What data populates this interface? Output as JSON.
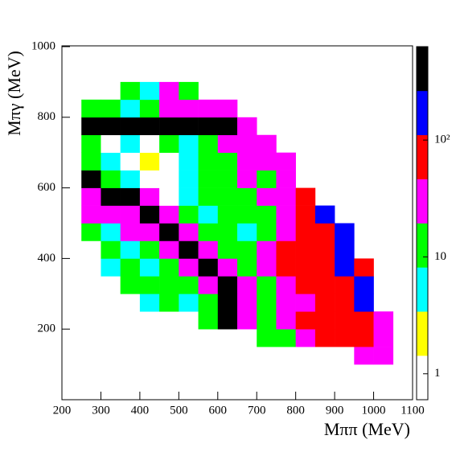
{
  "chart_data": {
    "type": "heatmap",
    "x_label": "Mππ (MeV)",
    "y_label": "Mπγ (MeV)",
    "xlim": [
      200,
      1100
    ],
    "xticks": [
      200,
      300,
      400,
      500,
      600,
      700,
      800,
      900,
      1000,
      1100
    ],
    "ylim": [
      0,
      1000
    ],
    "yticks": [
      200,
      400,
      600,
      800,
      1000
    ],
    "xbins": [
      200,
      250,
      300,
      350,
      400,
      450,
      500,
      550,
      600,
      650,
      700,
      750,
      800,
      850,
      900,
      950,
      1000,
      1050,
      1100
    ],
    "ybins": [
      0,
      50,
      100,
      150,
      200,
      250,
      300,
      350,
      400,
      450,
      500,
      550,
      600,
      650,
      700,
      750,
      800,
      850,
      900,
      950,
      1000
    ],
    "z": [
      [
        null,
        null,
        null,
        null,
        null,
        null,
        null,
        null,
        null,
        null,
        null,
        null,
        null,
        null,
        null,
        null,
        null,
        null
      ],
      [
        null,
        null,
        null,
        null,
        null,
        null,
        null,
        null,
        null,
        null,
        null,
        null,
        null,
        null,
        null,
        null,
        null,
        null
      ],
      [
        null,
        null,
        null,
        null,
        null,
        null,
        null,
        null,
        null,
        null,
        null,
        null,
        null,
        null,
        null,
        30,
        30,
        null
      ],
      [
        null,
        null,
        null,
        null,
        null,
        null,
        null,
        null,
        null,
        null,
        12,
        12,
        30,
        70,
        70,
        70,
        30,
        null
      ],
      [
        null,
        null,
        null,
        null,
        null,
        null,
        null,
        12,
        400,
        30,
        12,
        30,
        70,
        70,
        70,
        70,
        30,
        null
      ],
      [
        null,
        null,
        null,
        null,
        5,
        12,
        5,
        12,
        400,
        30,
        12,
        30,
        30,
        70,
        70,
        180,
        null,
        null
      ],
      [
        null,
        null,
        null,
        12,
        12,
        12,
        12,
        30,
        400,
        30,
        12,
        30,
        70,
        70,
        70,
        180,
        null,
        null
      ],
      [
        null,
        null,
        5,
        12,
        5,
        12,
        30,
        400,
        30,
        12,
        30,
        70,
        70,
        70,
        180,
        70,
        null,
        null
      ],
      [
        null,
        null,
        12,
        5,
        12,
        30,
        400,
        30,
        12,
        12,
        30,
        70,
        70,
        70,
        180,
        null,
        null,
        null
      ],
      [
        null,
        12,
        5,
        30,
        30,
        400,
        30,
        12,
        12,
        5,
        12,
        30,
        70,
        70,
        180,
        null,
        null,
        null
      ],
      [
        null,
        30,
        30,
        30,
        400,
        30,
        12,
        5,
        12,
        12,
        12,
        30,
        70,
        180,
        null,
        null,
        null,
        null
      ],
      [
        null,
        30,
        400,
        400,
        30,
        1,
        5,
        12,
        12,
        12,
        30,
        30,
        70,
        null,
        null,
        null,
        null,
        null
      ],
      [
        null,
        400,
        12,
        5,
        1,
        1,
        5,
        12,
        12,
        30,
        12,
        30,
        null,
        null,
        null,
        null,
        null,
        null
      ],
      [
        null,
        12,
        5,
        1,
        2,
        1,
        5,
        12,
        12,
        30,
        30,
        30,
        null,
        null,
        null,
        null,
        null,
        null
      ],
      [
        null,
        12,
        1,
        5,
        1,
        12,
        5,
        12,
        30,
        30,
        30,
        null,
        null,
        null,
        null,
        null,
        null,
        null
      ],
      [
        null,
        400,
        400,
        400,
        400,
        400,
        400,
        400,
        400,
        30,
        null,
        null,
        null,
        null,
        null,
        null,
        null,
        null
      ],
      [
        null,
        12,
        12,
        5,
        12,
        30,
        30,
        30,
        30,
        null,
        null,
        null,
        null,
        null,
        null,
        null,
        null,
        null
      ],
      [
        null,
        null,
        null,
        12,
        5,
        30,
        12,
        null,
        null,
        null,
        null,
        null,
        null,
        null,
        null,
        null,
        null,
        null
      ],
      [
        null,
        null,
        null,
        null,
        null,
        null,
        null,
        null,
        null,
        null,
        null,
        null,
        null,
        null,
        null,
        null,
        null,
        null
      ],
      [
        null,
        null,
        null,
        null,
        null,
        null,
        null,
        null,
        null,
        null,
        null,
        null,
        null,
        null,
        null,
        null,
        null,
        null
      ]
    ],
    "zlim": [
      0.6,
      630
    ],
    "zlog": true,
    "zticks": [
      1,
      10,
      {
        "value": 100,
        "label": "10²"
      }
    ],
    "colors": [
      "#ffffff",
      "#ffff00",
      "#00ffff",
      "#00ff00",
      "#ff00ff",
      "#ff0000",
      "#0000ff",
      "#000000"
    ]
  }
}
